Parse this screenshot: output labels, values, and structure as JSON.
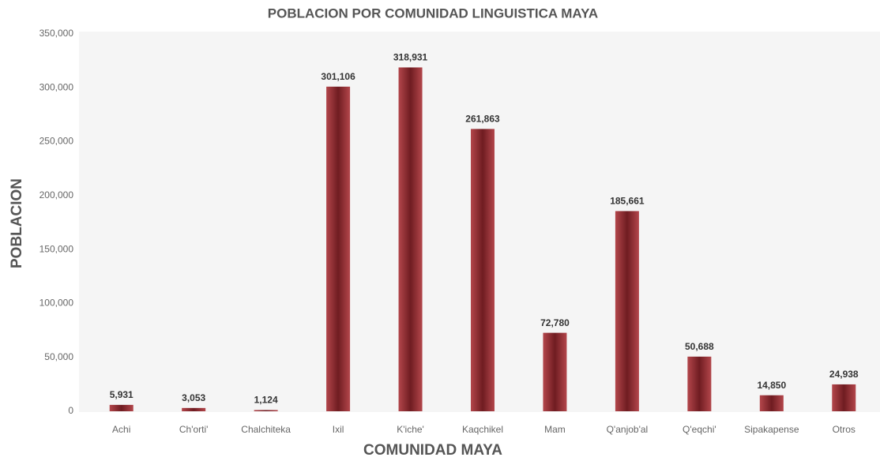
{
  "chart_data": {
    "type": "bar",
    "title": "POBLACION POR COMUNIDAD LINGUISTICA MAYA",
    "x_label": "COMUNIDAD MAYA",
    "y_label": "POBLACION",
    "categories": [
      "Achi",
      "Ch'orti'",
      "Chalchiteka",
      "Ixil",
      "K'iche'",
      "Kaqchikel",
      "Mam",
      "Q'anjob'al",
      "Q'eqchi'",
      "Sipakapense",
      "Otros"
    ],
    "values": [
      5931,
      3053,
      1124,
      301106,
      318931,
      261863,
      72780,
      185661,
      50688,
      14850,
      24938
    ],
    "value_labels": [
      "5,931",
      "3,053",
      "1,124",
      "301,106",
      "318,931",
      "261,863",
      "72,780",
      "185,661",
      "50,688",
      "14,850",
      "24,938"
    ],
    "color": "#8e2a2f",
    "ylim": [
      0,
      350000
    ],
    "yticks": [
      0,
      {
        "value": 50000,
        "label": "50,000"
      },
      {
        "value": 100000,
        "label": "100,000"
      },
      {
        "value": 150000,
        "label": "150,000"
      },
      {
        "value": 200000,
        "label": "200,000"
      },
      {
        "value": 250000,
        "label": "250,000"
      },
      {
        "value": 300000,
        "label": "300,000"
      },
      {
        "value": 350000,
        "label": "350,000"
      }
    ],
    "grid": false
  }
}
